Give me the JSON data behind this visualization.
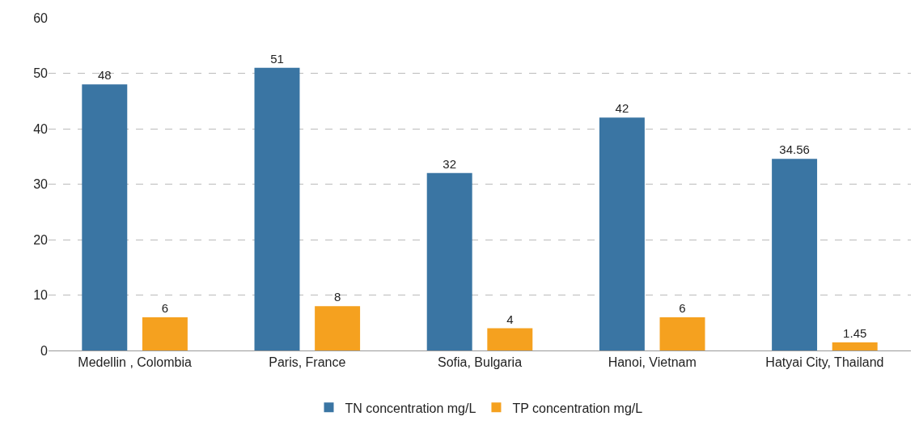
{
  "chart_data": {
    "type": "bar",
    "categories": [
      "Medellin , Colombia",
      "Paris, France",
      "Sofia, Bulgaria",
      "Hanoi, Vietnam",
      "Hatyai City, Thailand"
    ],
    "series": [
      {
        "name": "TN concentration mg/L",
        "color": "#3a75a3",
        "values": [
          48,
          51,
          32,
          42,
          34.56
        ]
      },
      {
        "name": "TP concentration mg/L",
        "color": "#f5a11f",
        "values": [
          6,
          8,
          4,
          6,
          1.45
        ]
      }
    ],
    "ylim": [
      0,
      60
    ],
    "yticks": [
      0,
      10,
      20,
      30,
      40,
      50,
      60
    ],
    "grid": "y",
    "legend": "bottom",
    "data_labels": true
  }
}
